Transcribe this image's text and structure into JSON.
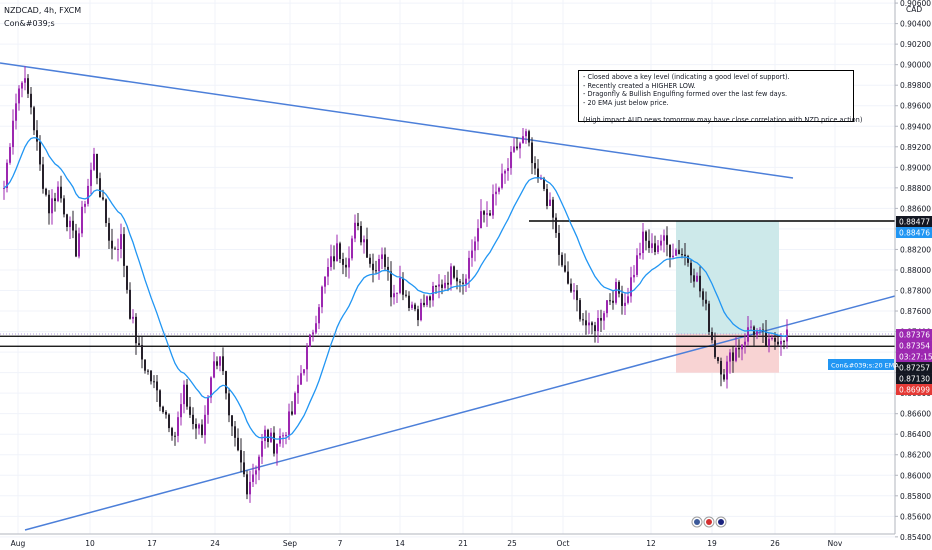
{
  "header": {
    "symbol_line": "NZDCAD, 4h, FXCM",
    "indicator_line": "Con&#039;s"
  },
  "currency_label": "CAD",
  "note_lines": [
    "- Closed above a key level (indicating a good level of support).",
    "- Recently created a HIGHER LOW.",
    "- Dragonfly & Bullish Engulfing formed over the last few days.",
    "- 20 EMA just below price.",
    "",
    "(High impact AUD news tomorrow may have close correlation with NZD price action)"
  ],
  "colors": {
    "up": "#9c27b0",
    "down": "#26202a",
    "ema": "#2196f3",
    "trendline": "#4c7fd9",
    "target_zone": "#cde9ea",
    "stop_zone": "#f8d3d3",
    "grid": "#f0f3fa"
  },
  "icons": [
    "flag-us-icon",
    "flag-ca-icon",
    "flag-nz-icon"
  ],
  "chart_data": {
    "type": "candlestick",
    "timeframe": "4h",
    "ylim": [
      0.8535,
      0.9063
    ],
    "y_ticks": [
      "0.90600",
      "0.90400",
      "0.90200",
      "0.90000",
      "0.89800",
      "0.89600",
      "0.89400",
      "0.89200",
      "0.89000",
      "0.88800",
      "0.88600",
      "0.88400",
      "0.88200",
      "0.88000",
      "0.87800",
      "0.87600",
      "0.87400",
      "0.87200",
      "0.87000",
      "0.86800",
      "0.86600",
      "0.86400",
      "0.86200",
      "0.86000",
      "0.85800",
      "0.85600",
      "0.85400"
    ],
    "x_ticks": [
      "Aug",
      "10",
      "17",
      "24",
      "Sep",
      "7",
      "14",
      "21",
      "25",
      "Oct",
      "12",
      "19",
      "26",
      "Nov"
    ],
    "close_path": [
      [
        0,
        0.888
      ],
      [
        3,
        0.895
      ],
      [
        6,
        0.899
      ],
      [
        9,
        0.896
      ],
      [
        12,
        0.89
      ],
      [
        15,
        0.886
      ],
      [
        18,
        0.888
      ],
      [
        21,
        0.885
      ],
      [
        24,
        0.882
      ],
      [
        27,
        0.887
      ],
      [
        30,
        0.891
      ],
      [
        33,
        0.886
      ],
      [
        36,
        0.882
      ],
      [
        39,
        0.883
      ],
      [
        42,
        0.876
      ],
      [
        45,
        0.872
      ],
      [
        48,
        0.87
      ],
      [
        51,
        0.868
      ],
      [
        54,
        0.866
      ],
      [
        57,
        0.864
      ],
      [
        60,
        0.868
      ],
      [
        63,
        0.865
      ],
      [
        66,
        0.864
      ],
      [
        69,
        0.87
      ],
      [
        72,
        0.872
      ],
      [
        75,
        0.865
      ],
      [
        78,
        0.862
      ],
      [
        81,
        0.859
      ],
      [
        84,
        0.861
      ],
      [
        87,
        0.864
      ],
      [
        90,
        0.863
      ],
      [
        93,
        0.864
      ],
      [
        96,
        0.866
      ],
      [
        99,
        0.87
      ],
      [
        102,
        0.873
      ],
      [
        105,
        0.877
      ],
      [
        108,
        0.88
      ],
      [
        111,
        0.882
      ],
      [
        114,
        0.881
      ],
      [
        117,
        0.884
      ],
      [
        120,
        0.883
      ],
      [
        123,
        0.88
      ],
      [
        126,
        0.882
      ],
      [
        129,
        0.878
      ],
      [
        132,
        0.879
      ],
      [
        135,
        0.877
      ],
      [
        138,
        0.876
      ],
      [
        141,
        0.877
      ],
      [
        144,
        0.878
      ],
      [
        147,
        0.879
      ],
      [
        150,
        0.88
      ],
      [
        153,
        0.879
      ],
      [
        156,
        0.882
      ],
      [
        159,
        0.885
      ],
      [
        162,
        0.886
      ],
      [
        165,
        0.888
      ],
      [
        168,
        0.89
      ],
      [
        171,
        0.892
      ],
      [
        174,
        0.893
      ],
      [
        177,
        0.889
      ],
      [
        180,
        0.888
      ],
      [
        183,
        0.885
      ],
      [
        186,
        0.88
      ],
      [
        189,
        0.878
      ],
      [
        192,
        0.876
      ],
      [
        195,
        0.874
      ],
      [
        198,
        0.875
      ],
      [
        201,
        0.877
      ],
      [
        204,
        0.878
      ],
      [
        207,
        0.877
      ],
      [
        210,
        0.88
      ],
      [
        213,
        0.883
      ],
      [
        216,
        0.882
      ],
      [
        219,
        0.883
      ],
      [
        222,
        0.882
      ],
      [
        225,
        0.882
      ],
      [
        228,
        0.881
      ],
      [
        231,
        0.879
      ],
      [
        234,
        0.876
      ],
      [
        237,
        0.872
      ],
      [
        240,
        0.87
      ],
      [
        243,
        0.872
      ],
      [
        246,
        0.873
      ],
      [
        249,
        0.8745
      ],
      [
        252,
        0.8735
      ],
      [
        255,
        0.8725
      ],
      [
        258,
        0.8735
      ],
      [
        261,
        0.8738
      ]
    ],
    "ema_period": 20,
    "key_levels": [
      {
        "label": "0.88477",
        "value": 0.88477
      },
      {
        "label": "0.87354",
        "value": 0.87354
      },
      {
        "label": "0.87257",
        "value": 0.87257
      },
      {
        "label": "0.87130",
        "value": 0.8713
      }
    ],
    "position": {
      "entry": 0.87376,
      "target": 0.88476,
      "stop": 0.86999
    },
    "price_tags": [
      {
        "label": "0.88477",
        "value": 0.88477,
        "bg": "#131722"
      },
      {
        "label": "0.88476",
        "value": 0.88476,
        "bg": "#2196f3"
      },
      {
        "label": "0.87376",
        "value": 0.87376,
        "bg": "#9c27b0"
      },
      {
        "label": "0.87354",
        "value": 0.87354,
        "bg": "#9c27b0"
      },
      {
        "label": "03:27:15",
        "value": 0.8729,
        "bg": "#9c27b0"
      },
      {
        "label": "0.87257",
        "value": 0.87257,
        "bg": "#131722"
      },
      {
        "label": "0.87130",
        "value": 0.8713,
        "bg": "#131722"
      },
      {
        "label": "0.86999",
        "value": 0.86999,
        "bg": "#e53935"
      }
    ],
    "ema_label": "Con&#039;s:20 EMA"
  }
}
